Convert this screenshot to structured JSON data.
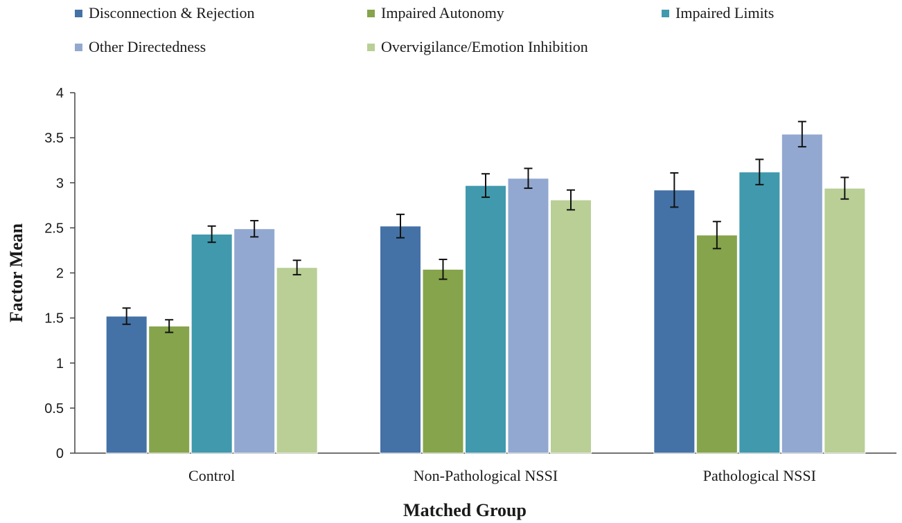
{
  "chart_data": {
    "type": "bar",
    "title": "",
    "xlabel": "Matched Group",
    "ylabel": "Factor Mean",
    "ylim": [
      0,
      4
    ],
    "yticks": [
      "0",
      "0.5",
      "1",
      "1.5",
      "2",
      "2.5",
      "3",
      "3.5",
      "4"
    ],
    "grid": false,
    "legend_position": "top",
    "categories": [
      "Control",
      "Non-Pathological NSSI",
      "Pathological NSSI"
    ],
    "series": [
      {
        "name": "Disconnection & Rejection",
        "color": "#4472a6",
        "values": [
          1.52,
          2.52,
          2.92
        ],
        "errors": [
          0.09,
          0.13,
          0.19
        ]
      },
      {
        "name": "Impaired Autonomy",
        "color": "#86a44b",
        "values": [
          1.41,
          2.04,
          2.42
        ],
        "errors": [
          0.07,
          0.11,
          0.15
        ]
      },
      {
        "name": "Impaired Limits",
        "color": "#4199ad",
        "values": [
          2.43,
          2.97,
          3.12
        ],
        "errors": [
          0.09,
          0.13,
          0.14
        ]
      },
      {
        "name": "Other Directedness",
        "color": "#92a8d0",
        "values": [
          2.49,
          3.05,
          3.54
        ],
        "errors": [
          0.09,
          0.11,
          0.14
        ]
      },
      {
        "name": "Overvigilance/Emotion Inhibition",
        "color": "#b9cf95",
        "values": [
          2.06,
          2.81,
          2.94
        ],
        "errors": [
          0.08,
          0.11,
          0.12
        ]
      }
    ]
  }
}
